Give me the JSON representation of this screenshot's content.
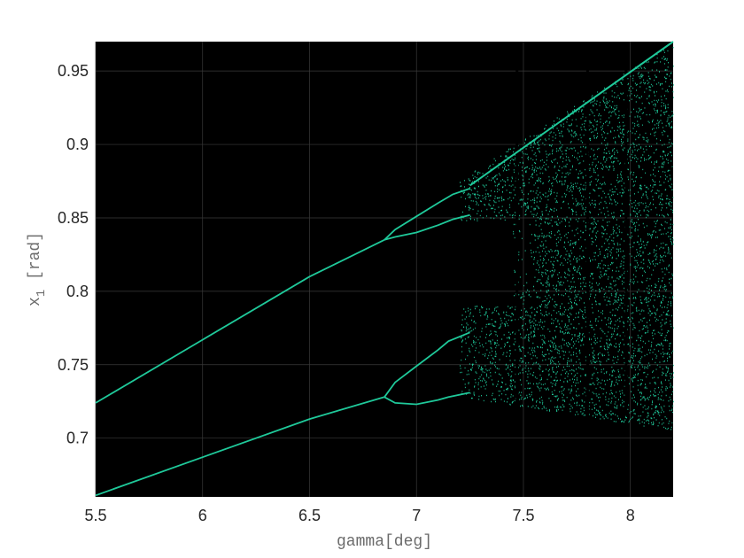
{
  "chart_data": {
    "type": "scatter",
    "title": "",
    "xlabel": "gamma[deg]",
    "ylabel_main": "x",
    "ylabel_sub": "1",
    "ylabel_unit": "[rad]",
    "xlim": [
      5.5,
      8.2
    ],
    "ylim": [
      0.66,
      0.97
    ],
    "xticks": [
      5.5,
      6,
      6.5,
      7,
      7.5,
      8
    ],
    "xtick_labels": [
      "5.5",
      "6",
      "6.5",
      "7",
      "7.5",
      "8"
    ],
    "yticks": [
      0.7,
      0.75,
      0.8,
      0.85,
      0.9,
      0.95
    ],
    "ytick_labels": [
      "0.7",
      "0.75",
      "0.8",
      "0.85",
      "0.9",
      "0.95"
    ],
    "grid": true,
    "background": "#000000",
    "point_color": "#1fc99a",
    "series": [
      {
        "x": [
          5.5,
          6.0,
          6.5,
          6.85
        ],
        "y": [
          0.724,
          0.767,
          0.81,
          0.835
        ]
      },
      {
        "x": [
          5.5,
          6.0,
          6.5,
          6.85
        ],
        "y": [
          0.661,
          0.687,
          0.713,
          0.728
        ]
      },
      {
        "x": [
          6.85,
          6.9,
          7.0,
          7.1,
          7.17,
          7.25
        ],
        "y": [
          0.835,
          0.842,
          0.851,
          0.86,
          0.866,
          0.87
        ]
      },
      {
        "x": [
          6.85,
          6.9,
          7.0,
          7.1,
          7.17,
          7.25
        ],
        "y": [
          0.835,
          0.837,
          0.84,
          0.845,
          0.849,
          0.852
        ]
      },
      {
        "x": [
          6.85,
          6.9,
          7.0,
          7.1,
          7.15,
          7.25
        ],
        "y": [
          0.728,
          0.738,
          0.749,
          0.76,
          0.766,
          0.772
        ]
      },
      {
        "x": [
          6.85,
          6.9,
          7.0,
          7.1,
          7.15,
          7.25
        ],
        "y": [
          0.728,
          0.724,
          0.723,
          0.726,
          0.728,
          0.731
        ]
      }
    ],
    "chaotic_region": {
      "x": [
        7.2,
        8.2
      ],
      "upper_y": [
        0.875,
        0.97
      ],
      "lower_y": [
        0.728,
        0.705
      ]
    }
  }
}
